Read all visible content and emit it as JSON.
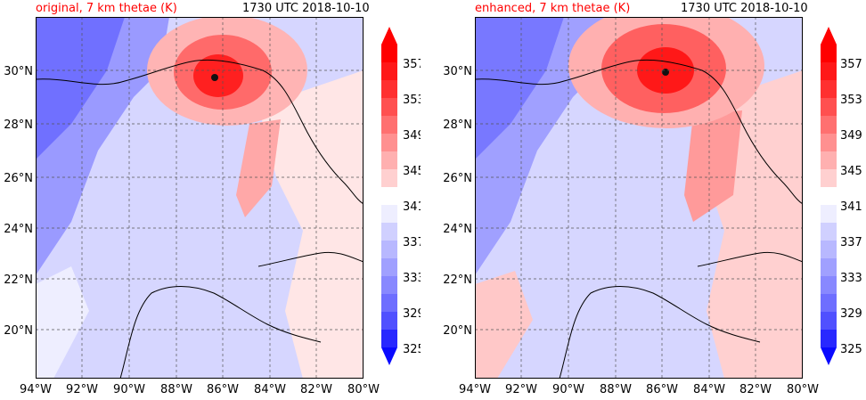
{
  "colors": {
    "c325": "#0a0aff",
    "c329": "#3c3cff",
    "c333": "#6e6eff",
    "c337": "#a0a0ff",
    "c341": "#d0d0ff",
    "c343": "#eeeeff",
    "c345": "#ffeaea",
    "c349": "#ffb0b0",
    "c353": "#ff7070",
    "c357": "#ff3030",
    "c361": "#ff0000"
  },
  "panels": [
    {
      "id": "original",
      "title_left": "original, 7 km thetae (K)",
      "title_right": "1730 UTC 2018-10-10"
    },
    {
      "id": "enhanced",
      "title_left": "enhanced, 7 km thetae (K)",
      "title_right": "1730 UTC 2018-10-10"
    }
  ],
  "axes": {
    "lon_ticks": [
      "94°W",
      "92°W",
      "90°W",
      "88°W",
      "86°W",
      "84°W",
      "82°W",
      "80°W"
    ],
    "lat_ticks": [
      "30°N",
      "28°N",
      "26°N",
      "24°N",
      "22°N",
      "20°N"
    ]
  },
  "colorbar": {
    "labels": [
      "357",
      "353",
      "349",
      "345",
      "341",
      "337",
      "333",
      "329",
      "325"
    ]
  }
}
